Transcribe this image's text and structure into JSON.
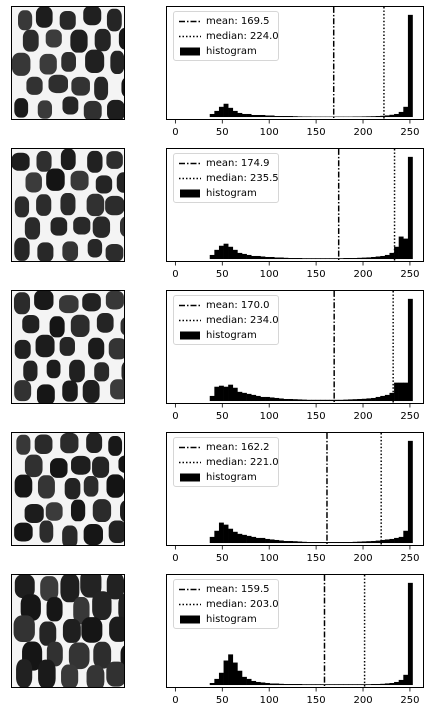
{
  "legend": {
    "histogram_label": "histogram"
  },
  "chart_data": [
    {
      "type": "bar",
      "mean_label": "mean: 169.5",
      "median_label": "median: 224.0",
      "mean": 169.5,
      "median": 224.0,
      "x_ticks": [
        "0",
        "50",
        "100",
        "150",
        "200",
        "250"
      ],
      "xlim": [
        -10,
        265
      ],
      "y_ticks_visible": false,
      "legend_position": "upper-left",
      "bins": [
        [
          35,
          3
        ],
        [
          40,
          6
        ],
        [
          45,
          10
        ],
        [
          50,
          13
        ],
        [
          55,
          9
        ],
        [
          60,
          6
        ],
        [
          65,
          4
        ],
        [
          70,
          3
        ],
        [
          75,
          3
        ],
        [
          80,
          2
        ],
        [
          85,
          2
        ],
        [
          90,
          2
        ],
        [
          95,
          1.5
        ],
        [
          100,
          1.5
        ],
        [
          105,
          1
        ],
        [
          110,
          1
        ],
        [
          115,
          1
        ],
        [
          120,
          1
        ],
        [
          125,
          0.8
        ],
        [
          130,
          0.6
        ],
        [
          135,
          0.5
        ],
        [
          140,
          0.5
        ],
        [
          145,
          0.4
        ],
        [
          150,
          0.4
        ],
        [
          155,
          0.4
        ],
        [
          160,
          0.4
        ],
        [
          165,
          0.4
        ],
        [
          170,
          0.4
        ],
        [
          175,
          0.4
        ],
        [
          180,
          0.4
        ],
        [
          185,
          0.4
        ],
        [
          190,
          0.5
        ],
        [
          195,
          0.5
        ],
        [
          200,
          0.6
        ],
        [
          205,
          0.7
        ],
        [
          210,
          0.8
        ],
        [
          215,
          1
        ],
        [
          220,
          1.2
        ],
        [
          225,
          1.6
        ],
        [
          230,
          2.2
        ],
        [
          235,
          3
        ],
        [
          240,
          5
        ],
        [
          245,
          10
        ],
        [
          250,
          100
        ]
      ],
      "ymax": 100
    },
    {
      "type": "bar",
      "mean_label": "mean: 174.9",
      "median_label": "median: 235.5",
      "mean": 174.9,
      "median": 235.5,
      "x_ticks": [
        "0",
        "50",
        "100",
        "150",
        "200",
        "250"
      ],
      "xlim": [
        -10,
        265
      ],
      "y_ticks_visible": false,
      "legend_position": "upper-left",
      "bins": [
        [
          35,
          4
        ],
        [
          40,
          9
        ],
        [
          45,
          13
        ],
        [
          50,
          15
        ],
        [
          55,
          12
        ],
        [
          60,
          9
        ],
        [
          65,
          6
        ],
        [
          70,
          5
        ],
        [
          75,
          4
        ],
        [
          80,
          3
        ],
        [
          85,
          3
        ],
        [
          90,
          2.5
        ],
        [
          95,
          2
        ],
        [
          100,
          2
        ],
        [
          105,
          1.5
        ],
        [
          110,
          1.5
        ],
        [
          115,
          1.2
        ],
        [
          120,
          1
        ],
        [
          125,
          1
        ],
        [
          130,
          1
        ],
        [
          135,
          0.8
        ],
        [
          140,
          0.8
        ],
        [
          145,
          0.8
        ],
        [
          150,
          0.8
        ],
        [
          155,
          0.8
        ],
        [
          160,
          0.8
        ],
        [
          165,
          0.8
        ],
        [
          170,
          0.8
        ],
        [
          175,
          0.8
        ],
        [
          180,
          1
        ],
        [
          185,
          1
        ],
        [
          190,
          1
        ],
        [
          195,
          1.2
        ],
        [
          200,
          1.4
        ],
        [
          205,
          1.6
        ],
        [
          210,
          2
        ],
        [
          215,
          2.5
        ],
        [
          220,
          3
        ],
        [
          225,
          4
        ],
        [
          230,
          6
        ],
        [
          235,
          12
        ],
        [
          240,
          22
        ],
        [
          245,
          20
        ],
        [
          250,
          100
        ]
      ],
      "ymax": 100
    },
    {
      "type": "bar",
      "mean_label": "mean: 170.0",
      "median_label": "median: 234.0",
      "mean": 170.0,
      "median": 234.0,
      "x_ticks": [
        "0",
        "50",
        "100",
        "150",
        "200",
        "250"
      ],
      "xlim": [
        -10,
        265
      ],
      "y_ticks_visible": false,
      "legend_position": "upper-left",
      "bins": [
        [
          35,
          5
        ],
        [
          40,
          14
        ],
        [
          45,
          15
        ],
        [
          50,
          14
        ],
        [
          55,
          16
        ],
        [
          60,
          13
        ],
        [
          65,
          9
        ],
        [
          70,
          8
        ],
        [
          75,
          7
        ],
        [
          80,
          6
        ],
        [
          85,
          5
        ],
        [
          90,
          4
        ],
        [
          95,
          4
        ],
        [
          100,
          3.5
        ],
        [
          105,
          3
        ],
        [
          110,
          2.5
        ],
        [
          115,
          2
        ],
        [
          120,
          2
        ],
        [
          125,
          1.8
        ],
        [
          130,
          1.6
        ],
        [
          135,
          1.4
        ],
        [
          140,
          1.2
        ],
        [
          145,
          1.2
        ],
        [
          150,
          1.2
        ],
        [
          155,
          1.2
        ],
        [
          160,
          1.2
        ],
        [
          165,
          1.2
        ],
        [
          170,
          1.2
        ],
        [
          175,
          1.2
        ],
        [
          180,
          1.4
        ],
        [
          185,
          1.6
        ],
        [
          190,
          1.8
        ],
        [
          195,
          2
        ],
        [
          200,
          2.2
        ],
        [
          205,
          2.6
        ],
        [
          210,
          3
        ],
        [
          215,
          4
        ],
        [
          220,
          5
        ],
        [
          225,
          6
        ],
        [
          230,
          8
        ],
        [
          235,
          18
        ],
        [
          240,
          18
        ],
        [
          245,
          18
        ],
        [
          250,
          100
        ]
      ],
      "ymax": 100
    },
    {
      "type": "bar",
      "mean_label": "mean: 162.2",
      "median_label": "median: 221.0",
      "mean": 162.2,
      "median": 221.0,
      "x_ticks": [
        "0",
        "50",
        "100",
        "150",
        "200",
        "250"
      ],
      "xlim": [
        -10,
        265
      ],
      "y_ticks_visible": false,
      "legend_position": "upper-left",
      "bins": [
        [
          35,
          6
        ],
        [
          40,
          12
        ],
        [
          45,
          20
        ],
        [
          50,
          18
        ],
        [
          55,
          14
        ],
        [
          60,
          11
        ],
        [
          65,
          9
        ],
        [
          70,
          8
        ],
        [
          75,
          7
        ],
        [
          80,
          6
        ],
        [
          85,
          5
        ],
        [
          90,
          5
        ],
        [
          95,
          4
        ],
        [
          100,
          3.5
        ],
        [
          105,
          3
        ],
        [
          110,
          2.5
        ],
        [
          115,
          2
        ],
        [
          120,
          2
        ],
        [
          125,
          1.8
        ],
        [
          130,
          1.5
        ],
        [
          135,
          1.2
        ],
        [
          140,
          1
        ],
        [
          145,
          1
        ],
        [
          150,
          1
        ],
        [
          155,
          1
        ],
        [
          160,
          1
        ],
        [
          165,
          1
        ],
        [
          170,
          1
        ],
        [
          175,
          1
        ],
        [
          180,
          1
        ],
        [
          185,
          1
        ],
        [
          190,
          1.2
        ],
        [
          195,
          1.4
        ],
        [
          200,
          1.6
        ],
        [
          205,
          1.8
        ],
        [
          210,
          2
        ],
        [
          215,
          2.4
        ],
        [
          220,
          3
        ],
        [
          225,
          3.5
        ],
        [
          230,
          4
        ],
        [
          235,
          5
        ],
        [
          240,
          6
        ],
        [
          245,
          12
        ],
        [
          250,
          100
        ]
      ],
      "ymax": 100
    },
    {
      "type": "bar",
      "mean_label": "mean: 159.5",
      "median_label": "median: 203.0",
      "mean": 159.5,
      "median": 203.0,
      "x_ticks": [
        "0",
        "50",
        "100",
        "150",
        "200",
        "250"
      ],
      "xlim": [
        -10,
        265
      ],
      "y_ticks_visible": false,
      "legend_position": "upper-left",
      "bins": [
        [
          35,
          2
        ],
        [
          40,
          6
        ],
        [
          45,
          12
        ],
        [
          50,
          24
        ],
        [
          55,
          30
        ],
        [
          60,
          22
        ],
        [
          65,
          14
        ],
        [
          70,
          8
        ],
        [
          75,
          6
        ],
        [
          80,
          4
        ],
        [
          85,
          3
        ],
        [
          90,
          2.5
        ],
        [
          95,
          2
        ],
        [
          100,
          1.5
        ],
        [
          105,
          1.5
        ],
        [
          110,
          1.2
        ],
        [
          115,
          1
        ],
        [
          120,
          1
        ],
        [
          125,
          1
        ],
        [
          130,
          1
        ],
        [
          135,
          0.8
        ],
        [
          140,
          0.8
        ],
        [
          145,
          0.8
        ],
        [
          150,
          0.8
        ],
        [
          155,
          0.8
        ],
        [
          160,
          0.8
        ],
        [
          165,
          0.8
        ],
        [
          170,
          0.8
        ],
        [
          175,
          0.8
        ],
        [
          180,
          0.8
        ],
        [
          185,
          0.8
        ],
        [
          190,
          0.8
        ],
        [
          195,
          0.8
        ],
        [
          200,
          0.8
        ],
        [
          205,
          0.8
        ],
        [
          210,
          1
        ],
        [
          215,
          1
        ],
        [
          220,
          1.2
        ],
        [
          225,
          1.6
        ],
        [
          230,
          2
        ],
        [
          235,
          3
        ],
        [
          240,
          5
        ],
        [
          245,
          10
        ],
        [
          250,
          100
        ]
      ],
      "ymax": 100
    }
  ],
  "thumbnails": [
    {
      "icon": "pebble-pattern-image-1"
    },
    {
      "icon": "pebble-pattern-image-2"
    },
    {
      "icon": "pebble-pattern-image-3"
    },
    {
      "icon": "pebble-pattern-image-4"
    },
    {
      "icon": "pebble-pattern-image-5"
    }
  ]
}
